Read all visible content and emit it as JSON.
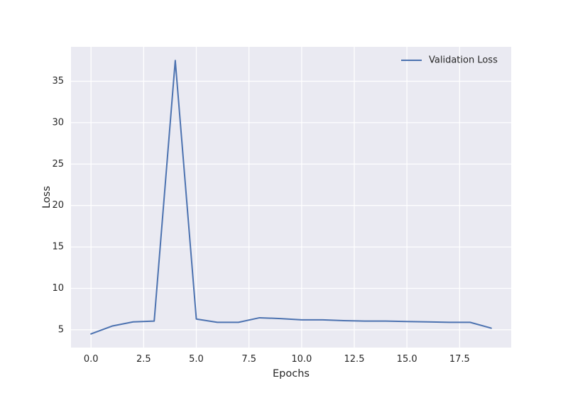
{
  "chart_data": {
    "type": "line",
    "title": "",
    "xlabel": "Epochs",
    "ylabel": "Loss",
    "xlim": [
      -0.95,
      19.95
    ],
    "ylim": [
      2.85,
      39.15
    ],
    "xticks": [
      0.0,
      2.5,
      5.0,
      7.5,
      10.0,
      12.5,
      15.0,
      17.5
    ],
    "xtick_labels": [
      "0.0",
      "2.5",
      "5.0",
      "7.5",
      "10.0",
      "12.5",
      "15.0",
      "17.5"
    ],
    "yticks": [
      5,
      10,
      15,
      20,
      25,
      30,
      35
    ],
    "ytick_labels": [
      "5",
      "10",
      "15",
      "20",
      "25",
      "30",
      "35"
    ],
    "grid": true,
    "legend_position": "top-right",
    "background_color": "#eaeaf2",
    "grid_color": "#ffffff",
    "series": [
      {
        "name": "Validation Loss",
        "color": "#4c72b0",
        "x": [
          0,
          1,
          2,
          3,
          4,
          5,
          6,
          7,
          8,
          9,
          10,
          11,
          12,
          13,
          14,
          15,
          16,
          17,
          18,
          19
        ],
        "y": [
          4.5,
          5.45,
          5.95,
          6.05,
          37.5,
          6.3,
          5.9,
          5.9,
          6.45,
          6.35,
          6.2,
          6.2,
          6.1,
          6.05,
          6.05,
          6.0,
          5.95,
          5.9,
          5.9,
          5.2
        ]
      }
    ]
  }
}
